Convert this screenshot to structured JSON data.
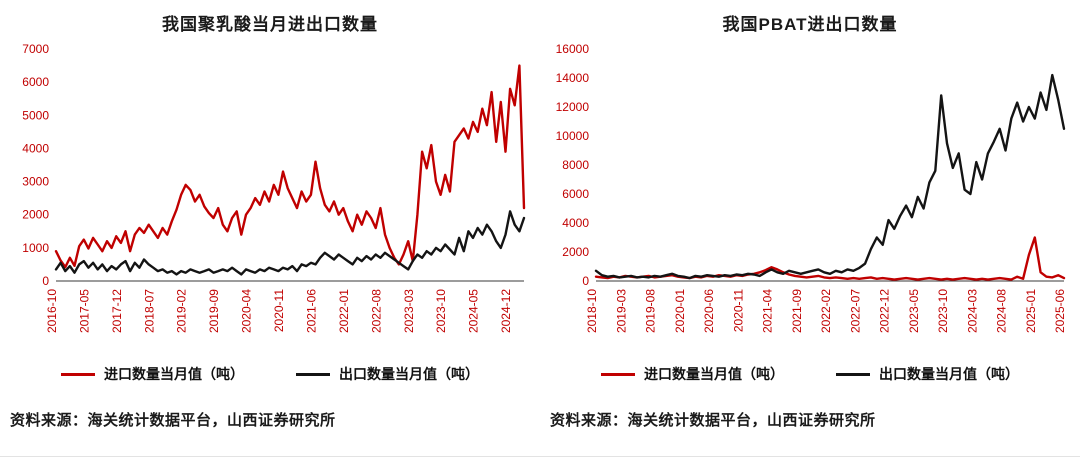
{
  "colors": {
    "axis_label": "#c00000",
    "axis_line": "#3a3a3a",
    "import_line": "#c00000",
    "export_line": "#141414",
    "background": "#ffffff"
  },
  "chart_data": [
    {
      "type": "line",
      "title": "我国聚乳酸当月进出口数量",
      "xlabel": "",
      "ylabel": "",
      "ylim": [
        0,
        7000
      ],
      "ytick_step": 1000,
      "grid": false,
      "legend_position": "bottom",
      "xtick_step": 7,
      "xtick_labels": [
        "2016-10",
        "2017-05",
        "2017-12",
        "2018-07",
        "2019-02",
        "2019-09",
        "2020-04",
        "2020-11",
        "2021-06",
        "2022-01",
        "2022-08",
        "2023-03",
        "2023-10",
        "2024-05",
        "2024-12"
      ],
      "x_start": "2016-10",
      "x_end": "2025-03",
      "series": [
        {
          "name": "进口数量当月值（吨）",
          "color": "#c00000",
          "values": [
            900,
            620,
            420,
            700,
            460,
            1050,
            1250,
            980,
            1300,
            1100,
            900,
            1200,
            1000,
            1350,
            1150,
            1500,
            900,
            1400,
            1600,
            1450,
            1700,
            1500,
            1300,
            1600,
            1400,
            1800,
            2150,
            2600,
            2900,
            2750,
            2400,
            2600,
            2250,
            2050,
            1900,
            2200,
            1700,
            1500,
            1900,
            2100,
            1400,
            2000,
            2200,
            2500,
            2300,
            2700,
            2400,
            2900,
            2600,
            3300,
            2800,
            2500,
            2200,
            2700,
            2400,
            2600,
            3600,
            2800,
            2300,
            2100,
            2400,
            2000,
            2200,
            1800,
            1500,
            2000,
            1700,
            2100,
            1900,
            1600,
            2200,
            1400,
            1000,
            700,
            500,
            800,
            1200,
            600,
            2000,
            3900,
            3400,
            4100,
            3000,
            2600,
            3200,
            2700,
            4200,
            4400,
            4600,
            4300,
            4800,
            4500,
            5200,
            4700,
            5700,
            4200,
            5400,
            3900,
            5800,
            5300,
            6500,
            2200
          ]
        },
        {
          "name": "出口数量当月值（吨）",
          "color": "#141414",
          "values": [
            350,
            550,
            300,
            450,
            250,
            500,
            600,
            400,
            550,
            350,
            500,
            300,
            450,
            350,
            500,
            600,
            300,
            550,
            400,
            650,
            500,
            400,
            300,
            350,
            250,
            300,
            200,
            300,
            250,
            350,
            300,
            250,
            300,
            350,
            250,
            300,
            350,
            300,
            400,
            300,
            200,
            350,
            300,
            250,
            350,
            300,
            400,
            350,
            300,
            400,
            350,
            450,
            300,
            500,
            450,
            550,
            500,
            700,
            850,
            750,
            650,
            800,
            700,
            600,
            500,
            700,
            600,
            750,
            650,
            800,
            700,
            850,
            750,
            650,
            550,
            450,
            350,
            600,
            800,
            700,
            900,
            800,
            1000,
            900,
            1100,
            950,
            800,
            1300,
            900,
            1500,
            1300,
            1600,
            1400,
            1700,
            1500,
            1200,
            1000,
            1400,
            2100,
            1700,
            1500,
            1900
          ]
        }
      ],
      "source": "资料来源：海关统计数据平台，山西证券研究所"
    },
    {
      "type": "line",
      "title": "我国PBAT进出口数量",
      "xlabel": "",
      "ylabel": "",
      "ylim": [
        0,
        16000
      ],
      "ytick_step": 2000,
      "grid": false,
      "legend_position": "bottom",
      "xtick_step": 5,
      "xtick_labels": [
        "2018-10",
        "2019-03",
        "2019-08",
        "2020-01",
        "2020-06",
        "2020-11",
        "2021-04",
        "2021-09",
        "2022-02",
        "2022-07",
        "2022-12",
        "2023-05",
        "2023-10",
        "2024-03",
        "2024-08",
        "2025-01",
        "2025-06"
      ],
      "x_start": "2018-10",
      "x_end": "2025-06",
      "series": [
        {
          "name": "进口数量当月值（吨）",
          "color": "#c00000",
          "values": [
            300,
            250,
            200,
            300,
            250,
            350,
            300,
            250,
            300,
            350,
            250,
            300,
            350,
            400,
            300,
            250,
            200,
            300,
            250,
            350,
            300,
            400,
            350,
            300,
            400,
            350,
            450,
            500,
            600,
            750,
            950,
            800,
            600,
            450,
            350,
            300,
            250,
            300,
            350,
            250,
            200,
            250,
            200,
            150,
            200,
            150,
            200,
            250,
            150,
            200,
            150,
            100,
            150,
            200,
            150,
            100,
            150,
            200,
            150,
            100,
            150,
            100,
            150,
            200,
            150,
            100,
            150,
            100,
            150,
            200,
            150,
            100,
            300,
            150,
            1800,
            3000,
            600,
            300,
            250,
            400,
            200
          ]
        },
        {
          "name": "出口数量当月值（吨）",
          "color": "#141414",
          "values": [
            700,
            400,
            300,
            350,
            250,
            300,
            350,
            250,
            300,
            250,
            350,
            300,
            400,
            500,
            350,
            300,
            200,
            350,
            300,
            400,
            350,
            300,
            400,
            350,
            450,
            400,
            500,
            450,
            350,
            600,
            800,
            600,
            500,
            700,
            600,
            500,
            600,
            700,
            800,
            600,
            500,
            700,
            600,
            800,
            700,
            900,
            1200,
            2200,
            3000,
            2500,
            4200,
            3600,
            4500,
            5200,
            4400,
            5800,
            5000,
            6800,
            7600,
            12800,
            9500,
            7800,
            8800,
            6300,
            6000,
            8200,
            7000,
            8800,
            9600,
            10500,
            9000,
            11200,
            12300,
            11000,
            12000,
            11200,
            13000,
            11800,
            14200,
            12500,
            10500
          ]
        }
      ],
      "source": "资料来源：海关统计数据平台，山西证券研究所"
    }
  ]
}
